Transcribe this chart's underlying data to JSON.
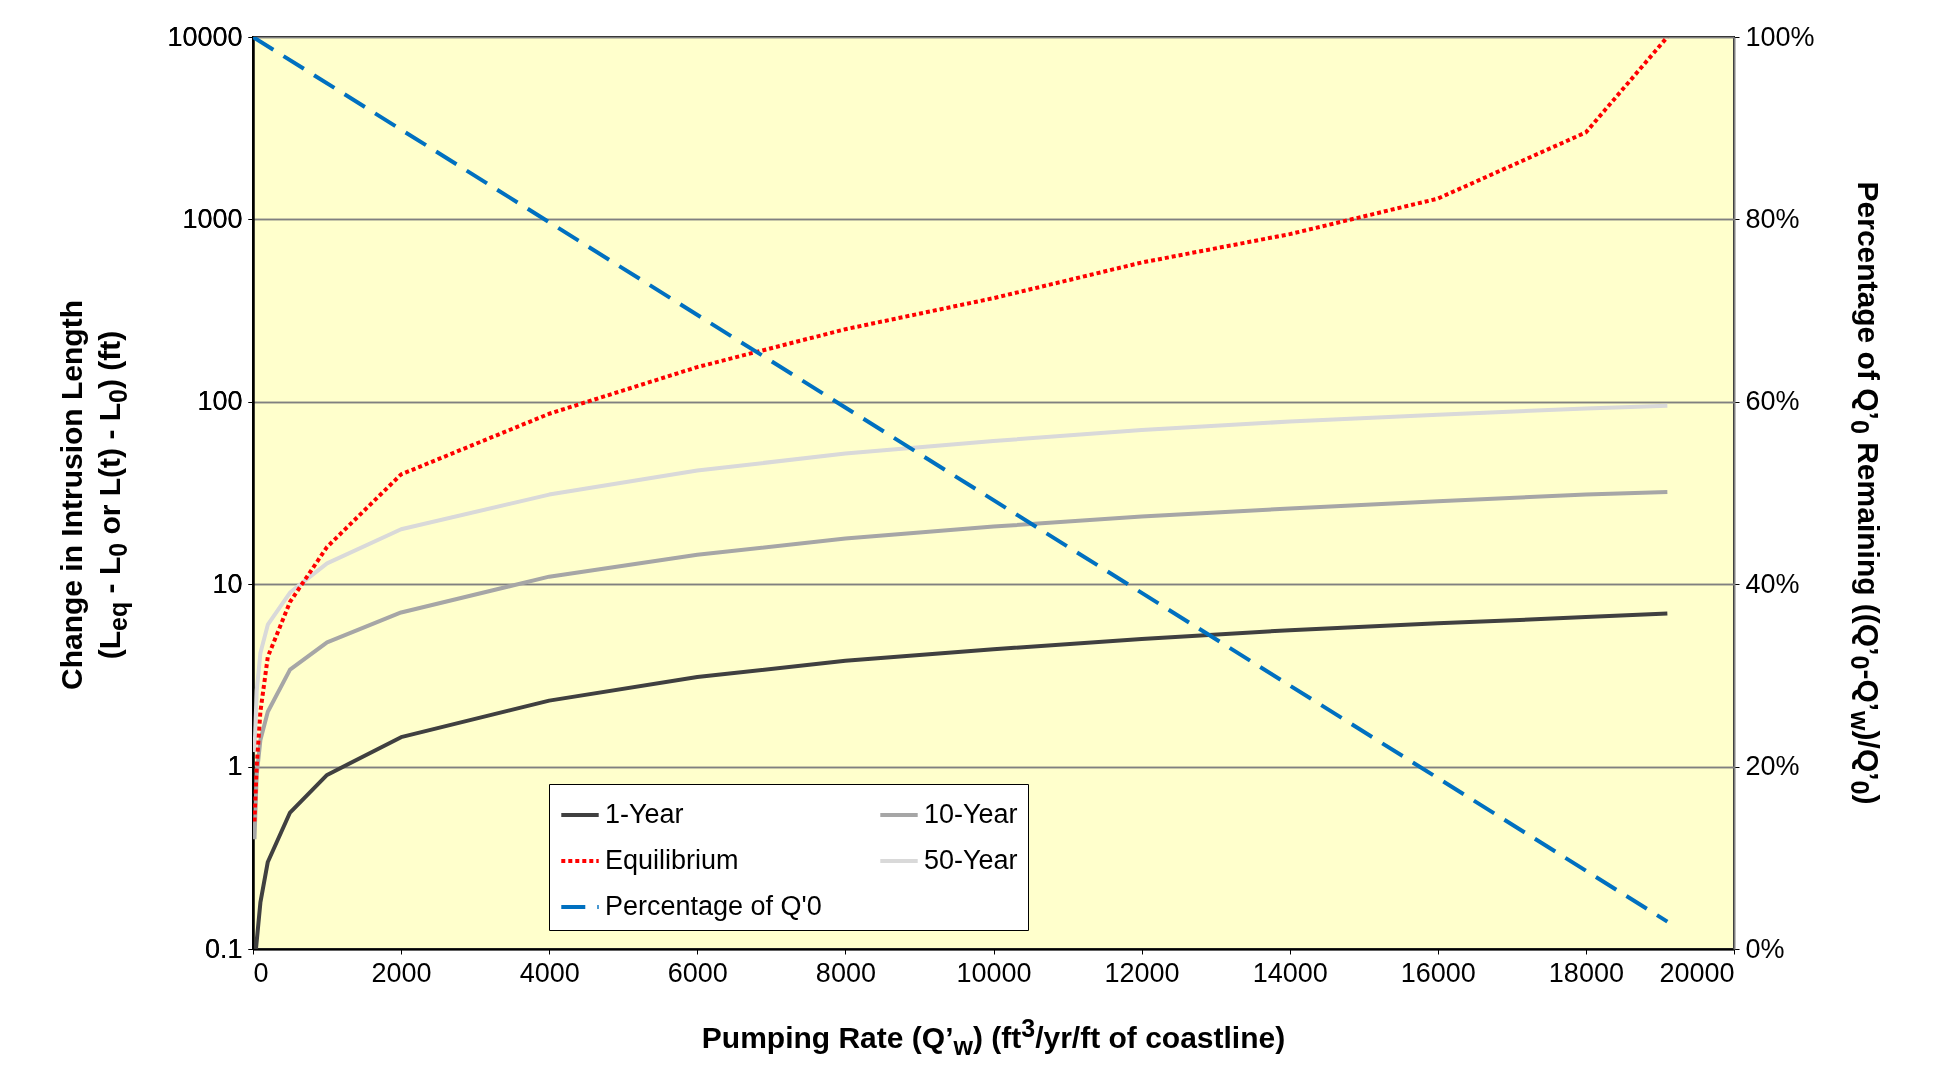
{
  "chart_data": {
    "type": "line",
    "xlabel": "Pumping Rate (Q’$_{w}$) (ft$^{3}$/yr/ft of coastline)",
    "ylabel": "Change in Intrusion Length (L$_{eq}$ - L$_{0}$ or L(t) - L$_{0}$) (ft)",
    "y2label": "Percentage of Q’$_{0}$ Remaining ((Q’$_{0}$-Q’$_{w}$)/Q’$_{0}$)",
    "xlim": [
      0,
      20000
    ],
    "xticks": [
      0,
      2000,
      4000,
      6000,
      8000,
      10000,
      12000,
      14000,
      16000,
      18000,
      20000
    ],
    "ylim": [
      0.1,
      10000
    ],
    "yticks": [
      0.1,
      1,
      10,
      100,
      1000,
      10000
    ],
    "y2lim": [
      0,
      100
    ],
    "y2ticks": [
      {
        "value": 0,
        "label": "0%"
      },
      {
        "value": 20,
        "label": "20%"
      },
      {
        "value": 40,
        "label": "40%"
      },
      {
        "value": 60,
        "label": "60%"
      },
      {
        "value": 80,
        "label": "80%"
      },
      {
        "value": 100,
        "label": "100%"
      }
    ],
    "log": "y",
    "grid": "y",
    "legend": "bottom",
    "x": [
      40,
      100,
      200,
      500,
      1000,
      2000,
      4000,
      6000,
      8000,
      10000,
      12000,
      14000,
      16000,
      18000,
      19100
    ],
    "series": [
      {
        "name": "1-Year",
        "color": "#404040",
        "line_style": "solid",
        "values": [
          0.1,
          0.18,
          0.3,
          0.56,
          0.9,
          1.45,
          2.3,
          3.1,
          3.8,
          4.4,
          5.0,
          5.6,
          6.1,
          6.6,
          6.9
        ]
      },
      {
        "name": "Equilibrium",
        "color": "#ff0000",
        "line_style": "dotted",
        "x": [
          20,
          50,
          100,
          200,
          500,
          1000,
          2000,
          4000,
          6000,
          8000,
          10000,
          12000,
          14000,
          16000,
          18000,
          19100
        ],
        "values": [
          0.5,
          1,
          2,
          4,
          8,
          16,
          40,
          86,
          155,
          250,
          370,
          580,
          830,
          1300,
          3000,
          10000
        ]
      },
      {
        "name": "Percentage of Q'0",
        "color": "#0070c0",
        "line_style": "dashed",
        "axis": "y2",
        "x": [
          0,
          19100
        ],
        "values": [
          100,
          3
        ]
      },
      {
        "name": "10-Year",
        "color": "#a6a6a6",
        "line_style": "solid",
        "x": [
          20,
          50,
          100,
          200,
          500,
          1000,
          2000,
          4000,
          6000,
          8000,
          10000,
          12000,
          14000,
          16000,
          18000,
          19100
        ],
        "values": [
          0.4,
          0.9,
          1.4,
          2.0,
          3.4,
          4.8,
          7,
          11,
          14.5,
          17.8,
          20.7,
          23.5,
          26,
          28.5,
          31,
          32
        ]
      },
      {
        "name": "50-Year",
        "color": "#d9d9d9",
        "line_style": "solid",
        "x": [
          20,
          50,
          100,
          200,
          500,
          1000,
          2000,
          4000,
          6000,
          8000,
          10000,
          12000,
          14000,
          16000,
          18000,
          19100
        ],
        "values": [
          1.2,
          2.6,
          4.2,
          6,
          9,
          13,
          20,
          31,
          42,
          52,
          61,
          70,
          78,
          85,
          92,
          95
        ]
      }
    ]
  }
}
